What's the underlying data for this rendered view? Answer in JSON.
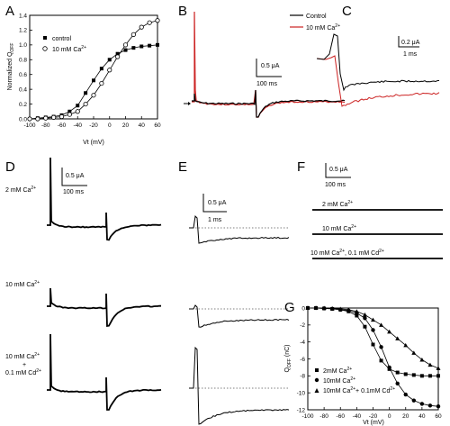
{
  "panel_labels": [
    "A",
    "B",
    "C",
    "D",
    "E",
    "F",
    "G"
  ],
  "colors": {
    "control": "#000000",
    "ca10": "#cc2222",
    "dotted": "#555555"
  },
  "chart_data": [
    {
      "panel": "A",
      "type": "scatter",
      "ylabel": "Normalized Q",
      "ylabel_sub": "OFF",
      "xlabel": "Vt (mV)",
      "xlim": [
        -100,
        60
      ],
      "ylim": [
        0,
        1.4
      ],
      "x_ticks": [
        -100,
        -80,
        -60,
        -40,
        -20,
        0,
        20,
        40,
        60
      ],
      "y_ticks": [
        0.0,
        0.2,
        0.4,
        0.6,
        0.8,
        1.0,
        1.2,
        1.4
      ],
      "x_tick_labels": [
        "-100",
        "-80",
        "-60",
        "-40",
        "-20",
        "0",
        "20",
        "40",
        "60"
      ],
      "y_tick_labels": [
        "0.0",
        "0.2",
        "0.4",
        "0.6",
        "0.8",
        "1.0",
        "1.2",
        "1.4"
      ],
      "legend_position": "top-left",
      "series": [
        {
          "name": "control",
          "marker": "filled-square",
          "x": [
            -100,
            -90,
            -80,
            -70,
            -60,
            -50,
            -40,
            -30,
            -20,
            -10,
            0,
            10,
            20,
            30,
            40,
            50,
            60
          ],
          "y": [
            0.0,
            0.01,
            0.02,
            0.03,
            0.05,
            0.1,
            0.18,
            0.35,
            0.52,
            0.68,
            0.8,
            0.88,
            0.93,
            0.96,
            0.98,
            0.99,
            1.0
          ]
        },
        {
          "name": "10 mM Ca",
          "name_sup": "2+",
          "marker": "open-circle",
          "x": [
            -100,
            -90,
            -80,
            -70,
            -60,
            -50,
            -40,
            -30,
            -20,
            -10,
            0,
            10,
            20,
            30,
            40,
            50,
            60
          ],
          "y": [
            0.0,
            0.0,
            0.01,
            0.02,
            0.03,
            0.06,
            0.1,
            0.2,
            0.32,
            0.48,
            0.66,
            0.84,
            1.0,
            1.14,
            1.24,
            1.3,
            1.33
          ]
        }
      ]
    },
    {
      "panel": "B",
      "type": "line",
      "legend": [
        {
          "name": "Control"
        },
        {
          "name": "10 mM Ca",
          "sup": "2+"
        }
      ],
      "scalebar": {
        "amplitude": "0.5 μA",
        "time": "100 ms"
      }
    },
    {
      "panel": "C",
      "type": "line",
      "scalebar": {
        "amplitude": "0.2 μA",
        "time": "1 ms"
      }
    },
    {
      "panel": "D",
      "type": "line",
      "scalebar": {
        "amplitude": "0.5 μA",
        "time": "100 ms"
      },
      "rows": [
        {
          "label": "2 mM Ca",
          "sup": "2+"
        },
        {
          "label": "10 mM Ca",
          "sup": "2+"
        },
        {
          "label_lines": [
            "10 mM Ca",
            "+",
            "0.1 mM Cd"
          ],
          "sups": [
            "2+",
            "",
            "2+"
          ]
        }
      ]
    },
    {
      "panel": "E",
      "type": "line",
      "scalebar": {
        "amplitude": "0.5 μA",
        "time": "1 ms"
      }
    },
    {
      "panel": "F",
      "type": "line",
      "scalebar": {
        "amplitude": "0.5 μA",
        "time": "100 ms"
      },
      "rows": [
        {
          "label": "2 mM Ca",
          "sup": "2+"
        },
        {
          "label": "10 mM Ca",
          "sup": "2+"
        },
        {
          "label": "10 mM Ca",
          "sup": "2+",
          "label2": ", 0.1 mM Cd",
          "sup2": "2+"
        }
      ]
    },
    {
      "panel": "G",
      "type": "scatter",
      "ylabel": "Q",
      "ylabel_sub": "OFF",
      "ylabel_unit": " (nC)",
      "xlabel": "Vt (mV)",
      "xlim": [
        -100,
        60
      ],
      "ylim": [
        -12,
        0
      ],
      "x_ticks": [
        -100,
        -80,
        -60,
        -40,
        -20,
        0,
        20,
        40,
        60
      ],
      "y_ticks": [
        0,
        -2,
        -4,
        -6,
        -8,
        -10,
        -12
      ],
      "x_tick_labels": [
        "-100",
        "-80",
        "-60",
        "-40",
        "-20",
        "0",
        "20",
        "40",
        "60"
      ],
      "y_tick_labels": [
        "0",
        "-2",
        "-4",
        "-6",
        "-8",
        "-10",
        "-12"
      ],
      "legend_position": "bottom-left",
      "series": [
        {
          "name": "2mM Ca",
          "sup": "2+",
          "marker": "filled-square",
          "x": [
            -100,
            -90,
            -80,
            -70,
            -60,
            -50,
            -40,
            -30,
            -20,
            -10,
            0,
            10,
            20,
            30,
            40,
            50,
            60
          ],
          "y": [
            0,
            0,
            -0.05,
            -0.1,
            -0.2,
            -0.4,
            -0.9,
            -2.2,
            -4.3,
            -6.2,
            -7.2,
            -7.6,
            -7.8,
            -7.9,
            -8.0,
            -8.0,
            -8.0
          ]
        },
        {
          "name": "10mM Ca",
          "sup": "2+",
          "marker": "filled-circle",
          "x": [
            -100,
            -90,
            -80,
            -70,
            -60,
            -50,
            -40,
            -30,
            -20,
            -10,
            0,
            10,
            20,
            30,
            40,
            50,
            60
          ],
          "y": [
            0,
            0,
            -0.05,
            -0.1,
            -0.2,
            -0.3,
            -0.6,
            -1.2,
            -2.6,
            -4.6,
            -7.0,
            -8.9,
            -10.2,
            -10.9,
            -11.3,
            -11.5,
            -11.6
          ]
        },
        {
          "name": "10mM Ca",
          "sup": "2+",
          "name2": "+ 0.1mM Cd",
          "sup2": "2+",
          "marker": "filled-triangle",
          "x": [
            -100,
            -90,
            -80,
            -70,
            -60,
            -50,
            -40,
            -30,
            -20,
            -10,
            0,
            10,
            20,
            30,
            40,
            50,
            60
          ],
          "y": [
            0,
            0,
            0,
            -0.05,
            -0.1,
            -0.2,
            -0.4,
            -0.8,
            -1.4,
            -2.0,
            -2.8,
            -3.6,
            -4.4,
            -5.3,
            -6.1,
            -6.7,
            -7.1
          ]
        }
      ]
    }
  ]
}
